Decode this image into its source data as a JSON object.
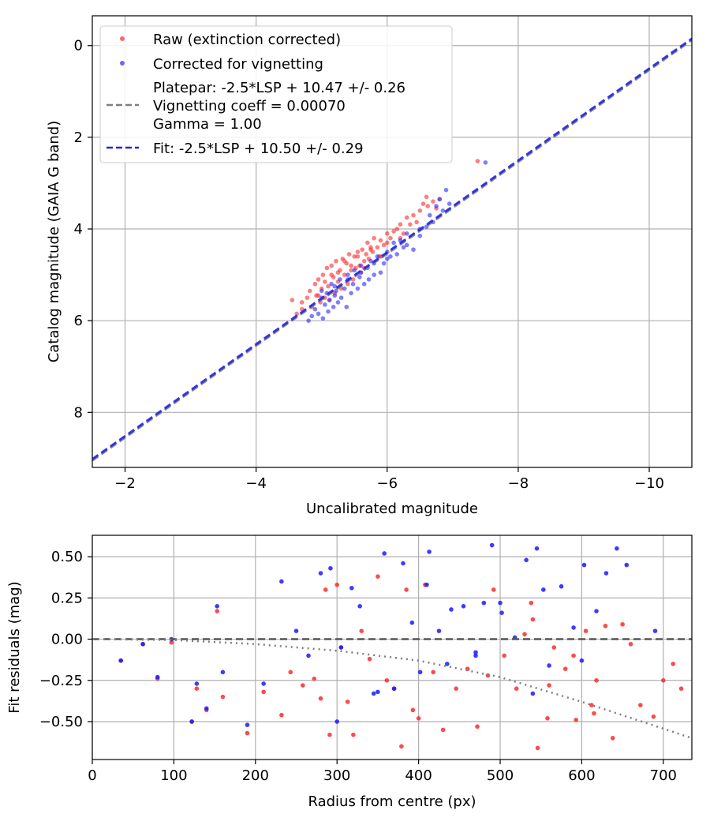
{
  "chart_data": [
    {
      "type": "scatter",
      "xlabel": "Uncalibrated magnitude",
      "ylabel": "Catalog magnitude (GAIA G band)",
      "xlim": [
        -1.5,
        -10.65
      ],
      "ylim": [
        9.2,
        -0.65
      ],
      "x_inverted": true,
      "y_inverted": true,
      "grid": true,
      "legend_position": "upper-left",
      "x_ticks": [
        -2,
        -4,
        -6,
        -8,
        -10
      ],
      "x_tick_labels": [
        "−2",
        "−4",
        "−6",
        "−8",
        "−10"
      ],
      "y_ticks": [
        0,
        2,
        4,
        6,
        8
      ],
      "y_tick_labels": [
        "0",
        "2",
        "4",
        "6",
        "8"
      ],
      "legend": {
        "raw": "Raw (extinction corrected)",
        "corrected": "Corrected for vignetting",
        "platepar_lines": [
          "Platepar: -2.5*LSP + 10.47 +/- 0.26",
          "Vignetting coeff = 0.00070",
          "Gamma = 1.00"
        ],
        "fit": "Fit: -2.5*LSP + 10.50 +/- 0.29"
      },
      "lines": [
        {
          "name": "platepar",
          "slope": 1.0,
          "intercept": 10.47,
          "color": "#7f7f7f"
        },
        {
          "name": "fit",
          "slope": 1.0,
          "intercept": 10.5,
          "color": "#2525e0"
        }
      ],
      "series": [
        {
          "name": "Raw (extinction corrected)",
          "color": "#ff2a2a",
          "x": [
            -4.55,
            -4.62,
            -4.7,
            -4.78,
            -4.82,
            -4.85,
            -4.9,
            -4.92,
            -4.95,
            -4.98,
            -5.0,
            -5.02,
            -5.05,
            -5.08,
            -5.1,
            -5.12,
            -5.15,
            -5.18,
            -5.2,
            -5.22,
            -5.25,
            -5.28,
            -5.3,
            -5.32,
            -5.35,
            -5.38,
            -5.4,
            -5.42,
            -5.45,
            -5.48,
            -5.5,
            -5.52,
            -5.55,
            -5.58,
            -5.6,
            -5.62,
            -5.65,
            -5.68,
            -5.7,
            -5.72,
            -5.75,
            -5.78,
            -5.8,
            -5.85,
            -5.88,
            -5.9,
            -5.95,
            -6.0,
            -6.05,
            -6.1,
            -6.15,
            -6.2,
            -6.25,
            -6.3,
            -6.35,
            -6.4,
            -6.5,
            -6.55,
            -6.6,
            -6.62,
            -6.7,
            -6.75,
            -6.8,
            -7.38,
            -4.7,
            -4.95,
            -5.05,
            -5.15,
            -5.25,
            -5.35,
            -5.45,
            -5.55,
            -5.65,
            -5.75,
            -5.9,
            -6.0,
            -6.2,
            -6.45
          ],
          "y": [
            5.55,
            5.85,
            5.6,
            5.5,
            5.35,
            5.7,
            5.2,
            5.45,
            5.1,
            5.6,
            5.3,
            5.0,
            5.5,
            4.85,
            5.25,
            5.55,
            4.8,
            5.05,
            5.4,
            4.7,
            5.15,
            4.9,
            5.3,
            4.65,
            5.0,
            4.75,
            5.2,
            4.55,
            4.9,
            5.1,
            4.6,
            4.85,
            4.5,
            4.8,
            4.95,
            4.45,
            4.7,
            4.55,
            4.3,
            4.65,
            4.4,
            4.5,
            4.2,
            4.4,
            4.6,
            4.25,
            4.35,
            4.1,
            4.2,
            4.05,
            4.0,
            3.9,
            4.1,
            3.75,
            3.9,
            3.7,
            3.6,
            3.45,
            3.3,
            3.5,
            3.4,
            3.55,
            3.35,
            2.52,
            5.75,
            5.45,
            5.15,
            5.0,
            4.95,
            4.7,
            4.8,
            4.6,
            4.85,
            4.45,
            4.6,
            4.3,
            4.2,
            3.85
          ]
        },
        {
          "name": "Corrected for vignetting",
          "color": "#2a2aff",
          "x": [
            -4.8,
            -4.85,
            -4.9,
            -4.95,
            -5.0,
            -5.02,
            -5.05,
            -5.08,
            -5.1,
            -5.12,
            -5.15,
            -5.18,
            -5.2,
            -5.22,
            -5.25,
            -5.28,
            -5.3,
            -5.35,
            -5.38,
            -5.4,
            -5.45,
            -5.48,
            -5.5,
            -5.55,
            -5.58,
            -5.6,
            -5.65,
            -5.7,
            -5.72,
            -5.75,
            -5.8,
            -5.85,
            -5.9,
            -5.95,
            -6.0,
            -6.05,
            -6.1,
            -6.15,
            -6.2,
            -6.25,
            -6.3,
            -6.4,
            -6.5,
            -6.6,
            -6.65,
            -6.7,
            -6.75,
            -6.8,
            -6.85,
            -6.9,
            -6.95,
            -7.5,
            -5.0,
            -5.2,
            -5.4,
            -5.6,
            -5.8,
            -6.0,
            -6.3,
            -6.5
          ],
          "y": [
            6.0,
            5.9,
            5.75,
            5.85,
            5.5,
            5.95,
            5.65,
            5.4,
            5.8,
            5.55,
            5.2,
            5.7,
            5.45,
            5.35,
            5.6,
            5.1,
            5.5,
            5.3,
            5.7,
            5.0,
            5.4,
            5.2,
            4.9,
            5.3,
            5.05,
            4.8,
            5.2,
            4.85,
            5.1,
            4.7,
            5.0,
            4.6,
            4.95,
            4.75,
            4.5,
            4.6,
            4.3,
            4.55,
            4.25,
            4.4,
            4.1,
            4.45,
            4.15,
            3.95,
            3.7,
            3.85,
            3.5,
            3.35,
            3.6,
            3.15,
            3.45,
            2.55,
            5.35,
            5.25,
            5.1,
            4.95,
            4.75,
            4.65,
            4.35,
            4.0
          ]
        }
      ]
    },
    {
      "type": "scatter",
      "xlabel": "Radius from centre (px)",
      "ylabel": "Fit residuals (mag)",
      "xlim": [
        0,
        735
      ],
      "ylim": [
        -0.73,
        0.63
      ],
      "grid": true,
      "x_ticks": [
        0,
        100,
        200,
        300,
        400,
        500,
        600,
        700
      ],
      "x_tick_labels": [
        "0",
        "100",
        "200",
        "300",
        "400",
        "500",
        "600",
        "700"
      ],
      "y_ticks": [
        0.5,
        0.25,
        0.0,
        -0.25,
        -0.5
      ],
      "y_tick_labels": [
        "0.50",
        "0.25",
        "0.00",
        "−0.25",
        "−0.50"
      ],
      "lines": [
        {
          "name": "zero",
          "style": "dashed",
          "color": "#555555",
          "points": [
            [
              0,
              0
            ],
            [
              735,
              0
            ]
          ]
        },
        {
          "name": "vignetting-model",
          "style": "dotted",
          "color": "#7f7f7f",
          "points": [
            [
              0,
              0.0
            ],
            [
              100,
              -0.005
            ],
            [
              200,
              -0.03
            ],
            [
              300,
              -0.07
            ],
            [
              400,
              -0.13
            ],
            [
              500,
              -0.23
            ],
            [
              600,
              -0.38
            ],
            [
              735,
              -0.6
            ]
          ]
        }
      ],
      "series": [
        {
          "name": "Raw",
          "color": "#ff2a2a",
          "x": [
            35,
            62,
            80,
            97,
            122,
            128,
            140,
            153,
            160,
            190,
            210,
            232,
            243,
            258,
            272,
            280,
            286,
            291,
            300,
            305,
            313,
            320,
            330,
            340,
            350,
            361,
            370,
            379,
            385,
            393,
            400,
            408,
            418,
            430,
            446,
            460,
            472,
            485,
            492,
            505,
            520,
            530,
            538,
            546,
            558,
            566,
            580,
            593,
            605,
            612,
            618,
            629,
            638,
            650,
            660,
            672,
            688,
            700,
            712,
            722,
            540,
            560,
            590,
            615
          ],
          "x_note": "raw residual radii",
          "y": [
            -0.13,
            -0.03,
            -0.24,
            -0.02,
            -0.5,
            -0.3,
            -0.43,
            0.17,
            -0.35,
            -0.57,
            -0.32,
            -0.46,
            -0.2,
            -0.28,
            -0.24,
            -0.36,
            0.3,
            -0.58,
            0.33,
            -0.05,
            -0.38,
            -0.58,
            0.05,
            -0.12,
            0.38,
            -0.25,
            -0.3,
            -0.65,
            0.3,
            -0.43,
            -0.48,
            0.33,
            -0.2,
            -0.55,
            -0.3,
            -0.18,
            -0.53,
            -0.22,
            0.3,
            -0.1,
            -0.3,
            0.03,
            0.22,
            -0.66,
            -0.48,
            -0.05,
            -0.18,
            -0.49,
            0.05,
            -0.4,
            -0.25,
            0.08,
            -0.6,
            0.09,
            -0.03,
            -0.4,
            -0.47,
            -0.25,
            -0.15,
            -0.3,
            0.12,
            -0.28,
            -0.1,
            -0.45
          ]
        },
        {
          "name": "Corrected",
          "color": "#1a1aff",
          "x": [
            35,
            62,
            80,
            97,
            122,
            128,
            140,
            153,
            160,
            190,
            210,
            232,
            250,
            265,
            280,
            292,
            305,
            318,
            328,
            345,
            358,
            370,
            381,
            392,
            402,
            413,
            425,
            440,
            455,
            470,
            480,
            490,
            502,
            518,
            532,
            545,
            553,
            560,
            575,
            590,
            603,
            618,
            630,
            643,
            655,
            690,
            300,
            350,
            410,
            435,
            470,
            500,
            540,
            600
          ],
          "y": [
            -0.13,
            -0.03,
            -0.23,
            0.0,
            -0.5,
            -0.27,
            -0.42,
            0.2,
            -0.2,
            -0.52,
            -0.27,
            0.35,
            0.05,
            -0.1,
            0.4,
            0.43,
            -0.05,
            0.31,
            0.2,
            -0.33,
            0.52,
            -0.3,
            0.46,
            0.1,
            -0.2,
            0.53,
            0.05,
            0.18,
            0.2,
            -0.08,
            0.22,
            0.57,
            0.16,
            0.01,
            0.48,
            0.55,
            0.3,
            -0.16,
            0.32,
            0.07,
            0.45,
            0.17,
            0.4,
            0.55,
            0.45,
            0.05,
            -0.5,
            -0.32,
            0.33,
            -0.15,
            -0.1,
            0.22,
            -0.33,
            -0.13
          ]
        }
      ]
    }
  ]
}
